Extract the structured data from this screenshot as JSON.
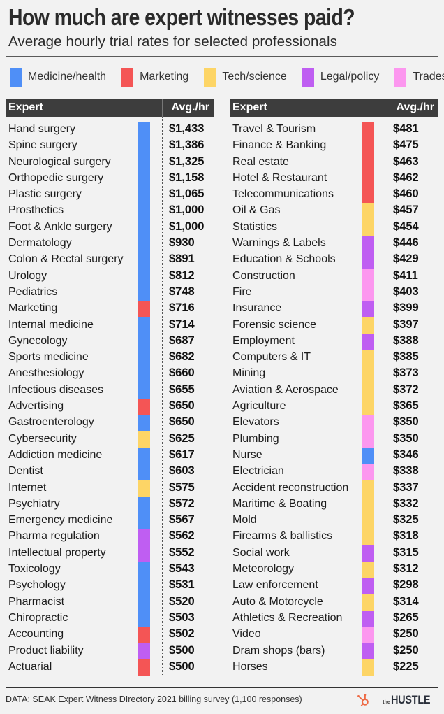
{
  "header": {
    "title": "How much are expert witnesses paid?",
    "subtitle": "Average hourly trial rates for selected professionals"
  },
  "colors": {
    "medicine": "#4f8ff7",
    "marketing": "#f45555",
    "tech": "#fdd566",
    "legal": "#bf5ef2",
    "trades": "#fc97ef"
  },
  "legend": [
    {
      "key": "medicine",
      "label": "Medicine/health",
      "color": "#4f8ff7"
    },
    {
      "key": "marketing",
      "label": "Marketing",
      "color": "#f45555"
    },
    {
      "key": "tech",
      "label": "Tech/science",
      "color": "#fdd566"
    },
    {
      "key": "legal",
      "label": "Legal/policy",
      "color": "#bf5ef2"
    },
    {
      "key": "trades",
      "label": "Trades",
      "color": "#fc97ef"
    }
  ],
  "table_headers": {
    "expert": "Expert",
    "avg": "Avg./hr"
  },
  "footer": {
    "source": "DATA: SEAK Expert Witness DIrectory 2021 billing survey (1,100 responses)",
    "logo_the": "the",
    "logo_hustle": "HUSTLE"
  },
  "chart_data": {
    "type": "table",
    "title": "How much are expert witnesses paid?",
    "subtitle": "Average hourly trial rates for selected professionals",
    "columns": [
      "Expert",
      "Avg./hr"
    ],
    "legend": [
      "Medicine/health",
      "Marketing",
      "Tech/science",
      "Legal/policy",
      "Trades"
    ],
    "left": [
      {
        "expert": "Hand surgery",
        "rate": "$1,433",
        "value": 1433,
        "category": "medicine"
      },
      {
        "expert": "Spine surgery",
        "rate": "$1,386",
        "value": 1386,
        "category": "medicine"
      },
      {
        "expert": "Neurological surgery",
        "rate": "$1,325",
        "value": 1325,
        "category": "medicine"
      },
      {
        "expert": "Orthopedic surgery",
        "rate": "$1,158",
        "value": 1158,
        "category": "medicine"
      },
      {
        "expert": "Plastic surgery",
        "rate": "$1,065",
        "value": 1065,
        "category": "medicine"
      },
      {
        "expert": "Prosthetics",
        "rate": "$1,000",
        "value": 1000,
        "category": "medicine"
      },
      {
        "expert": "Foot & Ankle surgery",
        "rate": "$1,000",
        "value": 1000,
        "category": "medicine"
      },
      {
        "expert": "Dermatology",
        "rate": "$930",
        "value": 930,
        "category": "medicine"
      },
      {
        "expert": "Colon & Rectal surgery",
        "rate": "$891",
        "value": 891,
        "category": "medicine"
      },
      {
        "expert": "Urology",
        "rate": "$812",
        "value": 812,
        "category": "medicine"
      },
      {
        "expert": "Pediatrics",
        "rate": "$748",
        "value": 748,
        "category": "medicine"
      },
      {
        "expert": "Marketing",
        "rate": "$716",
        "value": 716,
        "category": "marketing"
      },
      {
        "expert": "Internal medicine",
        "rate": "$714",
        "value": 714,
        "category": "medicine"
      },
      {
        "expert": "Gynecology",
        "rate": "$687",
        "value": 687,
        "category": "medicine"
      },
      {
        "expert": "Sports medicine",
        "rate": "$682",
        "value": 682,
        "category": "medicine"
      },
      {
        "expert": "Anesthesiology",
        "rate": "$660",
        "value": 660,
        "category": "medicine"
      },
      {
        "expert": "Infectious diseases",
        "rate": "$655",
        "value": 655,
        "category": "medicine"
      },
      {
        "expert": "Advertising",
        "rate": "$650",
        "value": 650,
        "category": "marketing"
      },
      {
        "expert": "Gastroenterology",
        "rate": "$650",
        "value": 650,
        "category": "medicine"
      },
      {
        "expert": "Cybersecurity",
        "rate": "$625",
        "value": 625,
        "category": "tech"
      },
      {
        "expert": "Addiction medicine",
        "rate": "$617",
        "value": 617,
        "category": "medicine"
      },
      {
        "expert": "Dentist",
        "rate": "$603",
        "value": 603,
        "category": "medicine"
      },
      {
        "expert": "Internet",
        "rate": "$575",
        "value": 575,
        "category": "tech"
      },
      {
        "expert": "Psychiatry",
        "rate": "$572",
        "value": 572,
        "category": "medicine"
      },
      {
        "expert": "Emergency medicine",
        "rate": "$567",
        "value": 567,
        "category": "medicine"
      },
      {
        "expert": "Pharma regulation",
        "rate": "$562",
        "value": 562,
        "category": "legal"
      },
      {
        "expert": "Intellectual property",
        "rate": "$552",
        "value": 552,
        "category": "legal"
      },
      {
        "expert": "Toxicology",
        "rate": "$543",
        "value": 543,
        "category": "medicine"
      },
      {
        "expert": "Psychology",
        "rate": "$531",
        "value": 531,
        "category": "medicine"
      },
      {
        "expert": "Pharmacist",
        "rate": "$520",
        "value": 520,
        "category": "medicine"
      },
      {
        "expert": "Chiropractic",
        "rate": "$503",
        "value": 503,
        "category": "medicine"
      },
      {
        "expert": "Accounting",
        "rate": "$502",
        "value": 502,
        "category": "marketing"
      },
      {
        "expert": "Product liability",
        "rate": "$500",
        "value": 500,
        "category": "legal"
      },
      {
        "expert": "Actuarial",
        "rate": "$500",
        "value": 500,
        "category": "marketing"
      }
    ],
    "right": [
      {
        "expert": "Travel & Tourism",
        "rate": "$481",
        "value": 481,
        "category": "marketing"
      },
      {
        "expert": "Finance & Banking",
        "rate": "$475",
        "value": 475,
        "category": "marketing"
      },
      {
        "expert": "Real estate",
        "rate": "$463",
        "value": 463,
        "category": "marketing"
      },
      {
        "expert": "Hotel & Restaurant",
        "rate": "$462",
        "value": 462,
        "category": "marketing"
      },
      {
        "expert": "Telecommunications",
        "rate": "$460",
        "value": 460,
        "category": "marketing"
      },
      {
        "expert": "Oil & Gas",
        "rate": "$457",
        "value": 457,
        "category": "tech"
      },
      {
        "expert": "Statistics",
        "rate": "$454",
        "value": 454,
        "category": "tech"
      },
      {
        "expert": "Warnings & Labels",
        "rate": "$446",
        "value": 446,
        "category": "legal"
      },
      {
        "expert": "Education & Schools",
        "rate": "$429",
        "value": 429,
        "category": "legal"
      },
      {
        "expert": "Construction",
        "rate": "$411",
        "value": 411,
        "category": "trades"
      },
      {
        "expert": "Fire",
        "rate": "$403",
        "value": 403,
        "category": "trades"
      },
      {
        "expert": "Insurance",
        "rate": "$399",
        "value": 399,
        "category": "legal"
      },
      {
        "expert": "Forensic science",
        "rate": "$397",
        "value": 397,
        "category": "tech"
      },
      {
        "expert": "Employment",
        "rate": "$388",
        "value": 388,
        "category": "legal"
      },
      {
        "expert": "Computers & IT",
        "rate": "$385",
        "value": 385,
        "category": "tech"
      },
      {
        "expert": "Mining",
        "rate": "$373",
        "value": 373,
        "category": "tech"
      },
      {
        "expert": "Aviation & Aerospace",
        "rate": "$372",
        "value": 372,
        "category": "tech"
      },
      {
        "expert": "Agriculture",
        "rate": "$365",
        "value": 365,
        "category": "tech"
      },
      {
        "expert": "Elevators",
        "rate": "$350",
        "value": 350,
        "category": "trades"
      },
      {
        "expert": "Plumbing",
        "rate": "$350",
        "value": 350,
        "category": "trades"
      },
      {
        "expert": "Nurse",
        "rate": "$346",
        "value": 346,
        "category": "medicine"
      },
      {
        "expert": "Electrician",
        "rate": "$338",
        "value": 338,
        "category": "trades"
      },
      {
        "expert": "Accident reconstruction",
        "rate": "$337",
        "value": 337,
        "category": "tech"
      },
      {
        "expert": "Maritime & Boating",
        "rate": "$332",
        "value": 332,
        "category": "tech"
      },
      {
        "expert": "Mold",
        "rate": "$325",
        "value": 325,
        "category": "tech"
      },
      {
        "expert": "Firearms & ballistics",
        "rate": "$318",
        "value": 318,
        "category": "tech"
      },
      {
        "expert": "Social work",
        "rate": "$315",
        "value": 315,
        "category": "legal"
      },
      {
        "expert": "Meteorology",
        "rate": "$312",
        "value": 312,
        "category": "tech"
      },
      {
        "expert": "Law enforcement",
        "rate": "$298",
        "value": 298,
        "category": "legal"
      },
      {
        "expert": "Auto & Motorcycle",
        "rate": "$314",
        "value": 314,
        "category": "tech"
      },
      {
        "expert": "Athletics & Recreation",
        "rate": "$265",
        "value": 265,
        "category": "legal"
      },
      {
        "expert": "Video",
        "rate": "$250",
        "value": 250,
        "category": "trades"
      },
      {
        "expert": "Dram shops (bars)",
        "rate": "$250",
        "value": 250,
        "category": "legal"
      },
      {
        "expert": "Horses",
        "rate": "$225",
        "value": 225,
        "category": "tech"
      }
    ]
  }
}
